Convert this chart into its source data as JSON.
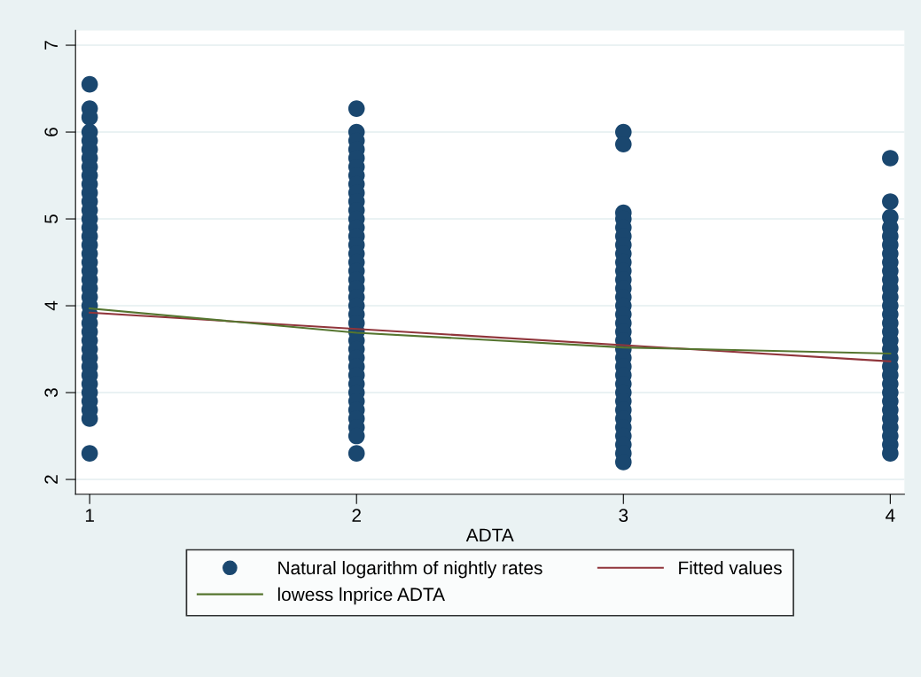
{
  "chart_data": {
    "type": "scatter",
    "xlabel": "ADTA",
    "xlim": [
      0.947,
      4.053
    ],
    "xticks": [
      1,
      2,
      3,
      4
    ],
    "ylim": [
      1.83,
      7.17
    ],
    "yticks": [
      2,
      3,
      4,
      5,
      6,
      7
    ],
    "grid": "y",
    "legend": "bottom",
    "marker": "circle",
    "series": [
      {
        "name": "Natural logarithm of nightly rates",
        "color": "#1a476f",
        "x": [
          1,
          1,
          1,
          1,
          1,
          1,
          1,
          1,
          1,
          1,
          1,
          1,
          1,
          1,
          1,
          1,
          1,
          1,
          1,
          1,
          1,
          1,
          1,
          1,
          1,
          1,
          1,
          1,
          1,
          1,
          1,
          1,
          1,
          1,
          1,
          1,
          1,
          1,
          2,
          2,
          2,
          2,
          2,
          2,
          2,
          2,
          2,
          2,
          2,
          2,
          2,
          2,
          2,
          2,
          2,
          2,
          2,
          2,
          2,
          2,
          2,
          2,
          2,
          2,
          2,
          2,
          2,
          2,
          2,
          2,
          2,
          2,
          2,
          2,
          2,
          2,
          3,
          3,
          3,
          3,
          3,
          3,
          3,
          3,
          3,
          3,
          3,
          3,
          3,
          3,
          3,
          3,
          3,
          3,
          3,
          3,
          3,
          3,
          3,
          3,
          3,
          3,
          3,
          3,
          3,
          3,
          3,
          3,
          4,
          4,
          4,
          4,
          4,
          4,
          4,
          4,
          4,
          4,
          4,
          4,
          4,
          4,
          4,
          4,
          4,
          4,
          4,
          4,
          4,
          4,
          4,
          4,
          4,
          4,
          4,
          4,
          4,
          4
        ],
        "values": [
          6.55,
          6.27,
          6.17,
          6.0,
          5.9,
          5.8,
          5.7,
          5.6,
          5.5,
          5.4,
          5.3,
          5.2,
          5.1,
          5.0,
          4.9,
          4.8,
          4.7,
          4.6,
          4.5,
          4.4,
          4.3,
          4.2,
          4.1,
          4.0,
          3.9,
          3.8,
          3.7,
          3.6,
          3.5,
          3.4,
          3.3,
          3.2,
          3.1,
          3.0,
          2.9,
          2.8,
          2.7,
          2.3,
          6.27,
          6.0,
          5.9,
          5.8,
          5.7,
          5.6,
          5.5,
          5.4,
          5.3,
          5.2,
          5.1,
          5.0,
          4.9,
          4.8,
          4.7,
          4.6,
          4.5,
          4.4,
          4.3,
          4.2,
          4.1,
          4.0,
          3.9,
          3.8,
          3.7,
          3.6,
          3.5,
          3.4,
          3.3,
          3.2,
          3.1,
          3.0,
          2.9,
          2.8,
          2.7,
          2.6,
          2.5,
          2.3,
          6.0,
          5.86,
          5.07,
          5.0,
          4.9,
          4.8,
          4.7,
          4.6,
          4.5,
          4.4,
          4.3,
          4.2,
          4.1,
          4.0,
          3.9,
          3.8,
          3.7,
          3.6,
          3.5,
          3.4,
          3.3,
          3.2,
          3.1,
          3.0,
          2.9,
          2.8,
          2.7,
          2.6,
          2.5,
          2.4,
          2.3,
          2.2,
          5.7,
          5.2,
          5.02,
          4.9,
          4.8,
          4.7,
          4.6,
          4.5,
          4.4,
          4.3,
          4.2,
          4.1,
          4.0,
          3.9,
          3.8,
          3.7,
          3.6,
          3.5,
          3.4,
          3.3,
          3.2,
          3.1,
          3.0,
          2.9,
          2.8,
          2.7,
          2.6,
          2.5,
          2.4,
          2.3
        ]
      },
      {
        "name": "Fitted values",
        "type": "line",
        "color": "#90353b",
        "marker": "none",
        "x": [
          1,
          4
        ],
        "values": [
          3.92,
          3.36
        ]
      },
      {
        "name": "lowess lnprice ADTA",
        "type": "line",
        "color": "#55752f",
        "marker": "none",
        "x": [
          1,
          2,
          3,
          4
        ],
        "values": [
          3.97,
          3.69,
          3.52,
          3.45
        ]
      }
    ]
  }
}
